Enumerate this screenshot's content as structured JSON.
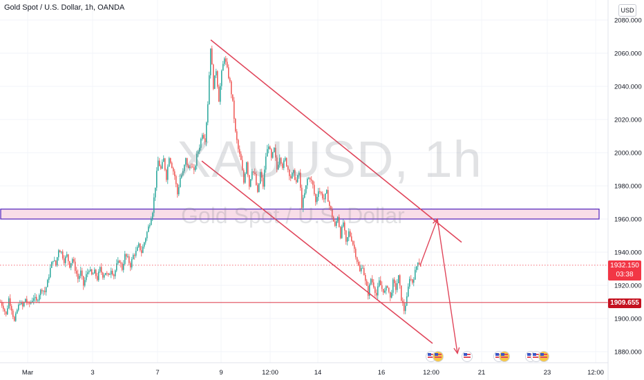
{
  "header": {
    "title": "Gold Spot / U.S. Dollar, 1h, OANDA",
    "currency": "USD"
  },
  "watermark": {
    "symbol": "XAUUSD, 1h",
    "description": "Gold Spot / U.S. Dollar"
  },
  "price_tags": {
    "last_price": "1932.150",
    "countdown": "03:38",
    "level": "1909.655"
  },
  "colors": {
    "up": "#26a69a",
    "down": "#ef5350",
    "annotation": "#e0455a",
    "zone_border": "#5b2fbf",
    "zone_fill": "#f8dde8",
    "axis_text": "#131722",
    "last_tag": "#f23645",
    "level_tag": "#c4111f"
  },
  "chart_data": {
    "type": "candlestick",
    "symbol": "XAUUSD",
    "timeframe": "1h",
    "y_axis": {
      "ticks": [
        "2080.000",
        "2060.000",
        "2040.000",
        "2020.000",
        "2000.000",
        "1980.000",
        "1960.000",
        "1940.000",
        "1920.000",
        "1900.000",
        "1880.000"
      ],
      "range": [
        1875,
        2085
      ]
    },
    "x_axis": {
      "ticks": [
        "Mar",
        "3",
        "7",
        "9",
        "12:00",
        "14",
        "16",
        "12:00",
        "21",
        "23",
        "12:00"
      ]
    },
    "candles_close_path": [
      [
        0,
        1910
      ],
      [
        4,
        1907
      ],
      [
        8,
        1902
      ],
      [
        12,
        1912
      ],
      [
        16,
        1906
      ],
      [
        20,
        1898
      ],
      [
        24,
        1905
      ],
      [
        28,
        1910
      ],
      [
        32,
        1907
      ],
      [
        36,
        1912
      ],
      [
        40,
        1908
      ],
      [
        44,
        1910
      ],
      [
        48,
        1913
      ],
      [
        52,
        1910
      ],
      [
        56,
        1915
      ],
      [
        60,
        1918
      ],
      [
        64,
        1916
      ],
      [
        68,
        1922
      ],
      [
        72,
        1930
      ],
      [
        76,
        1936
      ],
      [
        80,
        1932
      ],
      [
        84,
        1942
      ],
      [
        88,
        1940
      ],
      [
        92,
        1935
      ],
      [
        96,
        1938
      ],
      [
        100,
        1932
      ],
      [
        104,
        1936
      ],
      [
        108,
        1930
      ],
      [
        112,
        1924
      ],
      [
        116,
        1928
      ],
      [
        120,
        1920
      ],
      [
        124,
        1926
      ],
      [
        128,
        1930
      ],
      [
        132,
        1926
      ],
      [
        136,
        1928
      ],
      [
        140,
        1924
      ],
      [
        144,
        1930
      ],
      [
        148,
        1926
      ],
      [
        152,
        1928
      ],
      [
        156,
        1925
      ],
      [
        160,
        1930
      ],
      [
        164,
        1926
      ],
      [
        168,
        1932
      ],
      [
        172,
        1935
      ],
      [
        176,
        1930
      ],
      [
        180,
        1938
      ],
      [
        184,
        1936
      ],
      [
        188,
        1932
      ],
      [
        192,
        1938
      ],
      [
        196,
        1940
      ],
      [
        200,
        1944
      ],
      [
        204,
        1940
      ],
      [
        208,
        1946
      ],
      [
        212,
        1952
      ],
      [
        216,
        1958
      ],
      [
        220,
        1965
      ],
      [
        224,
        1980
      ],
      [
        228,
        1995
      ],
      [
        232,
        1990
      ],
      [
        236,
        1996
      ],
      [
        240,
        1985
      ],
      [
        244,
        1998
      ],
      [
        248,
        1992
      ],
      [
        252,
        1986
      ],
      [
        256,
        1975
      ],
      [
        260,
        1985
      ],
      [
        264,
        1988
      ],
      [
        268,
        1996
      ],
      [
        272,
        1990
      ],
      [
        276,
        1993
      ],
      [
        280,
        1988
      ],
      [
        284,
        1998
      ],
      [
        288,
        2004
      ],
      [
        292,
        2012
      ],
      [
        296,
        2008
      ],
      [
        300,
        2030
      ],
      [
        304,
        2064
      ],
      [
        308,
        2040
      ],
      [
        312,
        2050
      ],
      [
        316,
        2032
      ],
      [
        320,
        2048
      ],
      [
        324,
        2058
      ],
      [
        328,
        2050
      ],
      [
        332,
        2042
      ],
      [
        336,
        2030
      ],
      [
        340,
        2012
      ],
      [
        344,
        2002
      ],
      [
        348,
        1995
      ],
      [
        352,
        1982
      ],
      [
        356,
        1995
      ],
      [
        360,
        1980
      ],
      [
        364,
        1990
      ],
      [
        368,
        1986
      ],
      [
        372,
        1975
      ],
      [
        376,
        1988
      ],
      [
        380,
        1980
      ],
      [
        384,
        1998
      ],
      [
        388,
        2005
      ],
      [
        392,
        1996
      ],
      [
        396,
        2002
      ],
      [
        400,
        1990
      ],
      [
        404,
        1998
      ],
      [
        408,
        1992
      ],
      [
        412,
        1996
      ],
      [
        416,
        1990
      ],
      [
        420,
        1985
      ],
      [
        424,
        1988
      ],
      [
        428,
        1982
      ],
      [
        432,
        1988
      ],
      [
        436,
        1968
      ],
      [
        440,
        1975
      ],
      [
        444,
        1984
      ],
      [
        448,
        1985
      ],
      [
        452,
        1980
      ],
      [
        456,
        1970
      ],
      [
        460,
        1978
      ],
      [
        464,
        1975
      ],
      [
        468,
        1972
      ],
      [
        472,
        1976
      ],
      [
        476,
        1968
      ],
      [
        480,
        1962
      ],
      [
        484,
        1955
      ],
      [
        488,
        1962
      ],
      [
        492,
        1950
      ],
      [
        496,
        1958
      ],
      [
        500,
        1945
      ],
      [
        504,
        1952
      ],
      [
        508,
        1948
      ],
      [
        512,
        1942
      ],
      [
        516,
        1935
      ],
      [
        520,
        1928
      ],
      [
        524,
        1932
      ],
      [
        528,
        1922
      ],
      [
        532,
        1915
      ],
      [
        536,
        1924
      ],
      [
        540,
        1920
      ],
      [
        544,
        1914
      ],
      [
        548,
        1922
      ],
      [
        552,
        1918
      ],
      [
        556,
        1916
      ],
      [
        560,
        1920
      ],
      [
        564,
        1912
      ],
      [
        568,
        1922
      ],
      [
        572,
        1918
      ],
      [
        576,
        1925
      ],
      [
        580,
        1912
      ],
      [
        584,
        1905
      ],
      [
        588,
        1912
      ],
      [
        592,
        1925
      ],
      [
        596,
        1922
      ],
      [
        600,
        1928
      ],
      [
        604,
        1935
      ],
      [
        608,
        1932
      ]
    ],
    "annotations": {
      "horizontal_line": 1909.655,
      "last_price_line": 1932.15,
      "zone": [
        1960,
        1966
      ],
      "descending_channel": {
        "upper": [
          [
            305,
            2068
          ],
          [
            668,
            1946
          ]
        ],
        "lower": [
          [
            292,
            1995
          ],
          [
            626,
            1885
          ]
        ]
      },
      "projection": [
        [
          608,
          1932
        ],
        [
          633,
          1960
        ],
        [
          662,
          1879
        ]
      ]
    }
  }
}
